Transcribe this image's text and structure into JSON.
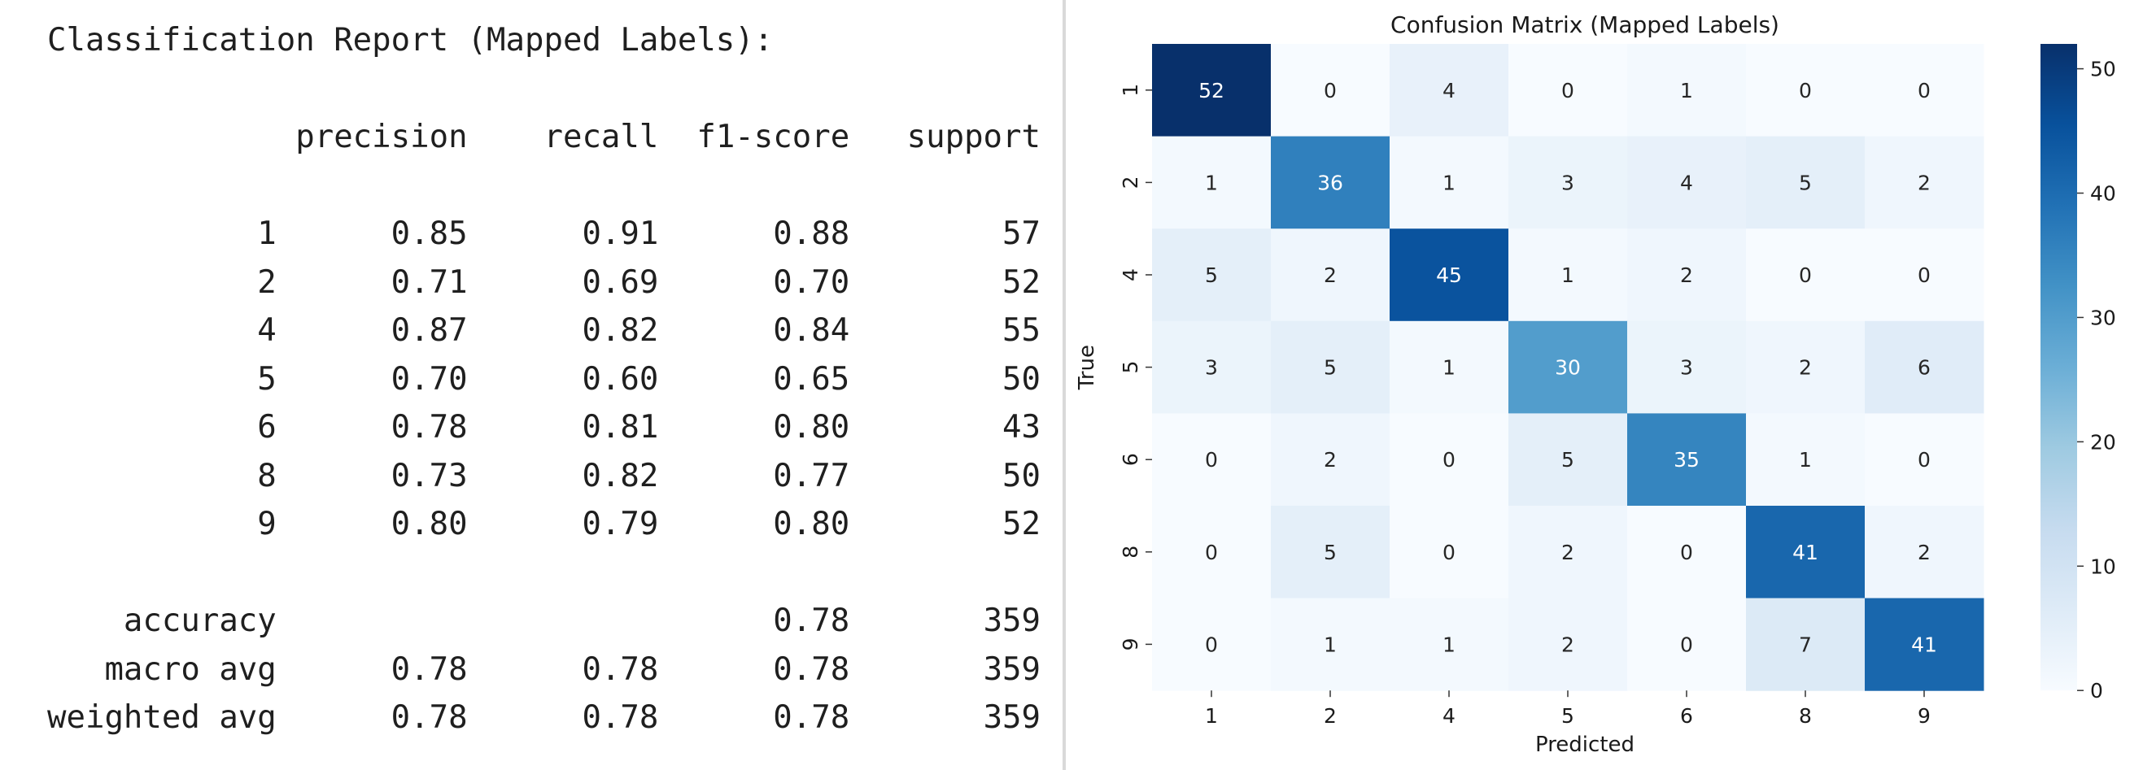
{
  "report": {
    "title": "Classification Report (Mapped Labels):",
    "headers": [
      "precision",
      "recall",
      "f1-score",
      "support"
    ],
    "rows": [
      {
        "label": "1",
        "precision": "0.85",
        "recall": "0.91",
        "f1": "0.88",
        "support": "57"
      },
      {
        "label": "2",
        "precision": "0.71",
        "recall": "0.69",
        "f1": "0.70",
        "support": "52"
      },
      {
        "label": "4",
        "precision": "0.87",
        "recall": "0.82",
        "f1": "0.84",
        "support": "55"
      },
      {
        "label": "5",
        "precision": "0.70",
        "recall": "0.60",
        "f1": "0.65",
        "support": "50"
      },
      {
        "label": "6",
        "precision": "0.78",
        "recall": "0.81",
        "f1": "0.80",
        "support": "43"
      },
      {
        "label": "8",
        "precision": "0.73",
        "recall": "0.82",
        "f1": "0.77",
        "support": "50"
      },
      {
        "label": "9",
        "precision": "0.80",
        "recall": "0.79",
        "f1": "0.80",
        "support": "52"
      }
    ],
    "summary": [
      {
        "label": "accuracy",
        "precision": "",
        "recall": "",
        "f1": "0.78",
        "support": "359"
      },
      {
        "label": "macro avg",
        "precision": "0.78",
        "recall": "0.78",
        "f1": "0.78",
        "support": "359"
      },
      {
        "label": "weighted avg",
        "precision": "0.78",
        "recall": "0.78",
        "f1": "0.78",
        "support": "359"
      }
    ]
  },
  "chart_data": {
    "type": "heatmap",
    "title": "Confusion Matrix (Mapped Labels)",
    "xlabel": "Predicted",
    "ylabel": "True",
    "x_categories": [
      "1",
      "2",
      "4",
      "5",
      "6",
      "8",
      "9"
    ],
    "y_categories": [
      "1",
      "2",
      "4",
      "5",
      "6",
      "8",
      "9"
    ],
    "values": [
      [
        52,
        0,
        4,
        0,
        1,
        0,
        0
      ],
      [
        1,
        36,
        1,
        3,
        4,
        5,
        2
      ],
      [
        5,
        2,
        45,
        1,
        2,
        0,
        0
      ],
      [
        3,
        5,
        1,
        30,
        3,
        2,
        6
      ],
      [
        0,
        2,
        0,
        5,
        35,
        1,
        0
      ],
      [
        0,
        5,
        0,
        2,
        0,
        41,
        2
      ],
      [
        0,
        1,
        1,
        2,
        0,
        7,
        41
      ]
    ],
    "colormap": "Blues",
    "vmin": 0,
    "vmax": 52,
    "colorbar_ticks": [
      0,
      10,
      20,
      30,
      40,
      50
    ],
    "annotation_colors": {
      "light": "#ffffff",
      "dark": "#262626"
    }
  }
}
